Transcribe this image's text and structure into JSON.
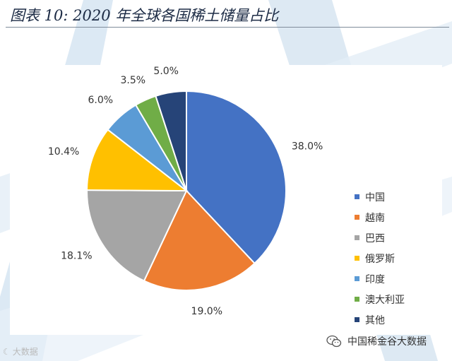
{
  "figure": {
    "title": "图表 10:  2020 年全球各国稀土储量占比"
  },
  "chart_data": {
    "type": "pie",
    "title": "",
    "categories": [
      "中国",
      "越南",
      "巴西",
      "俄罗斯",
      "印度",
      "澳大利亚",
      "其他"
    ],
    "values": [
      38.0,
      19.0,
      18.1,
      10.4,
      6.0,
      3.5,
      5.0
    ],
    "value_labels": [
      "38.0%",
      "19.0%",
      "18.1%",
      "10.4%",
      "6.0%",
      "3.5%",
      "5.0%"
    ],
    "colors": [
      "#4472c4",
      "#ed7d31",
      "#a5a5a5",
      "#ffc000",
      "#5b9bd5",
      "#70ad47",
      "#264478"
    ],
    "legend_position": "right",
    "start_angle_deg": 0,
    "direction": "clockwise"
  },
  "legend": {
    "items": [
      {
        "label": "中国",
        "color": "#4472c4"
      },
      {
        "label": "越南",
        "color": "#ed7d31"
      },
      {
        "label": "巴西",
        "color": "#a5a5a5"
      },
      {
        "label": "俄罗斯",
        "color": "#ffc000"
      },
      {
        "label": "印度",
        "color": "#5b9bd5"
      },
      {
        "label": "澳大利亚",
        "color": "#70ad47"
      },
      {
        "label": "其他",
        "color": "#264478"
      }
    ]
  },
  "footer": {
    "watermark_left": "大数据",
    "source_account": "中国稀金谷大数据",
    "icon": "wechat-icon"
  }
}
